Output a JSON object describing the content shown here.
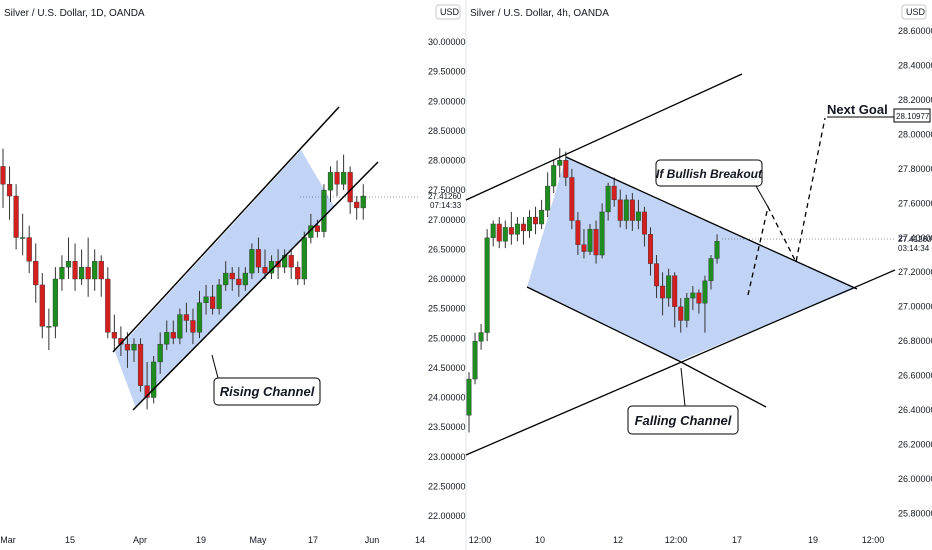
{
  "colors": {
    "bull": "#1e8c1e",
    "bear": "#d41f1f",
    "fill": "#b7cdf3",
    "line": "#000000",
    "price_line": "#333333"
  },
  "currency_badge": "USD",
  "chart_data": [
    {
      "type": "candlestick",
      "title": "Silver / U.S. Dollar, 1D, OANDA",
      "x_tick_labels": [
        "Mar",
        "15",
        "Apr",
        "19",
        "May",
        "17",
        "Jun",
        "14"
      ],
      "y_tick_labels": [
        "22.00000",
        "22.50000",
        "23.00000",
        "23.50000",
        "24.00000",
        "24.50000",
        "25.00000",
        "25.50000",
        "26.00000",
        "26.50000",
        "27.00000",
        "27.50000",
        "28.00000",
        "28.50000",
        "29.00000",
        "29.50000",
        "30.00000"
      ],
      "ylim": [
        21.8,
        30.4
      ],
      "last_price": "27.41260",
      "countdown": "07:14:33",
      "candles": [
        [
          27.9,
          27.6,
          28.2,
          27.2
        ],
        [
          27.6,
          27.4,
          27.9,
          27.0
        ],
        [
          27.4,
          26.7,
          27.6,
          26.5
        ],
        [
          26.7,
          26.7,
          27.1,
          26.4
        ],
        [
          26.7,
          26.3,
          26.9,
          26.1
        ],
        [
          26.3,
          25.9,
          26.6,
          25.6
        ],
        [
          25.9,
          25.2,
          26.1,
          25.0
        ],
        [
          25.2,
          25.2,
          25.5,
          24.8
        ],
        [
          25.2,
          26.0,
          26.2,
          25.0
        ],
        [
          26.0,
          26.2,
          26.4,
          25.8
        ],
        [
          26.2,
          26.3,
          26.7,
          26.0
        ],
        [
          26.3,
          26.0,
          26.6,
          25.8
        ],
        [
          26.0,
          26.2,
          26.5,
          25.9
        ],
        [
          26.2,
          26.0,
          26.7,
          25.7
        ],
        [
          26.0,
          26.3,
          26.5,
          25.8
        ],
        [
          26.3,
          26.0,
          26.4,
          25.7
        ],
        [
          26.0,
          25.1,
          26.2,
          25.0
        ],
        [
          25.1,
          25.0,
          25.4,
          24.8
        ],
        [
          25.0,
          24.9,
          25.2,
          24.7
        ],
        [
          24.9,
          24.8,
          25.1,
          24.5
        ],
        [
          24.8,
          24.9,
          25.0,
          24.6
        ],
        [
          24.9,
          24.2,
          25.0,
          24.1
        ],
        [
          24.2,
          24.0,
          24.6,
          23.8
        ],
        [
          24.0,
          24.6,
          24.7,
          23.9
        ],
        [
          24.6,
          24.9,
          25.1,
          24.4
        ],
        [
          24.9,
          25.1,
          25.3,
          24.8
        ],
        [
          25.1,
          25.0,
          25.3,
          24.9
        ],
        [
          25.0,
          25.4,
          25.5,
          24.9
        ],
        [
          25.4,
          25.3,
          25.6,
          25.1
        ],
        [
          25.3,
          25.1,
          25.5,
          24.9
        ],
        [
          25.1,
          25.6,
          25.8,
          25.0
        ],
        [
          25.6,
          25.7,
          25.9,
          25.4
        ],
        [
          25.7,
          25.5,
          25.9,
          25.4
        ],
        [
          25.5,
          25.9,
          26.0,
          25.4
        ],
        [
          25.9,
          26.1,
          26.3,
          25.8
        ],
        [
          26.1,
          26.0,
          26.2,
          25.8
        ],
        [
          26.0,
          25.9,
          26.2,
          25.7
        ],
        [
          25.9,
          26.1,
          26.2,
          25.8
        ],
        [
          26.1,
          26.5,
          26.6,
          26.0
        ],
        [
          26.5,
          26.2,
          26.7,
          26.1
        ],
        [
          26.2,
          26.1,
          26.5,
          26.0
        ],
        [
          26.1,
          26.3,
          26.4,
          26.0
        ],
        [
          26.3,
          26.2,
          26.5,
          26.0
        ],
        [
          26.2,
          26.4,
          26.5,
          26.1
        ],
        [
          26.4,
          26.2,
          26.5,
          26.0
        ],
        [
          26.2,
          26.0,
          26.3,
          25.9
        ],
        [
          26.0,
          26.7,
          26.8,
          25.9
        ],
        [
          26.7,
          26.9,
          27.1,
          26.6
        ],
        [
          26.9,
          26.8,
          27.0,
          26.7
        ],
        [
          26.8,
          27.5,
          27.6,
          26.7
        ],
        [
          27.5,
          27.8,
          27.9,
          27.3
        ],
        [
          27.8,
          27.6,
          28.0,
          27.4
        ],
        [
          27.6,
          27.8,
          28.1,
          27.5
        ],
        [
          27.8,
          27.3,
          27.9,
          27.1
        ],
        [
          27.3,
          27.2,
          27.4,
          27.0
        ],
        [
          27.2,
          27.4,
          27.6,
          27.0
        ]
      ],
      "annotation": "Rising Channel"
    },
    {
      "type": "candlestick",
      "title": "Silver / U.S. Dollar, 4h, OANDA",
      "x_tick_labels": [
        "12:00",
        "10",
        "12",
        "12:00",
        "17",
        "19",
        "12:00"
      ],
      "y_tick_labels": [
        "25.80000",
        "26.00000",
        "26.20000",
        "26.40000",
        "26.60000",
        "26.80000",
        "27.00000",
        "27.20000",
        "27.40000",
        "27.60000",
        "27.80000",
        "28.00000",
        "28.20000",
        "28.40000",
        "28.60000"
      ],
      "ylim": [
        25.75,
        28.75
      ],
      "last_price": "27.41260",
      "countdown": "03:14:34",
      "target_price": "28.10977",
      "candles": [
        [
          26.37,
          26.58,
          26.62,
          26.27
        ],
        [
          26.58,
          26.8,
          26.85,
          26.55
        ],
        [
          26.8,
          26.85,
          26.9,
          26.75
        ],
        [
          26.85,
          27.4,
          27.45,
          26.8
        ],
        [
          27.4,
          27.48,
          27.5,
          27.35
        ],
        [
          27.48,
          27.38,
          27.52,
          27.34
        ],
        [
          27.38,
          27.46,
          27.5,
          27.34
        ],
        [
          27.46,
          27.42,
          27.55,
          27.36
        ],
        [
          27.42,
          27.48,
          27.52,
          27.38
        ],
        [
          27.48,
          27.44,
          27.52,
          27.36
        ],
        [
          27.44,
          27.52,
          27.56,
          27.4
        ],
        [
          27.52,
          27.48,
          27.58,
          27.42
        ],
        [
          27.48,
          27.56,
          27.62,
          27.45
        ],
        [
          27.56,
          27.7,
          27.78,
          27.52
        ],
        [
          27.7,
          27.82,
          27.85,
          27.66
        ],
        [
          27.82,
          27.85,
          27.92,
          27.75
        ],
        [
          27.85,
          27.75,
          27.9,
          27.7
        ],
        [
          27.75,
          27.5,
          27.8,
          27.45
        ],
        [
          27.5,
          27.36,
          27.55,
          27.3
        ],
        [
          27.36,
          27.32,
          27.45,
          27.28
        ],
        [
          27.32,
          27.45,
          27.48,
          27.3
        ],
        [
          27.45,
          27.3,
          27.5,
          27.25
        ],
        [
          27.3,
          27.55,
          27.6,
          27.28
        ],
        [
          27.55,
          27.7,
          27.72,
          27.5
        ],
        [
          27.7,
          27.62,
          27.75,
          27.58
        ],
        [
          27.62,
          27.5,
          27.68,
          27.46
        ],
        [
          27.5,
          27.62,
          27.65,
          27.45
        ],
        [
          27.62,
          27.5,
          27.66,
          27.44
        ],
        [
          27.5,
          27.55,
          27.62,
          27.45
        ],
        [
          27.55,
          27.42,
          27.58,
          27.35
        ],
        [
          27.42,
          27.25,
          27.46,
          27.18
        ],
        [
          27.25,
          27.12,
          27.3,
          27.05
        ],
        [
          27.12,
          27.05,
          27.2,
          26.95
        ],
        [
          27.05,
          27.18,
          27.22,
          27.0
        ],
        [
          27.18,
          27.0,
          27.2,
          26.88
        ],
        [
          27.0,
          26.92,
          27.05,
          26.85
        ],
        [
          26.92,
          27.05,
          27.08,
          26.88
        ],
        [
          27.05,
          27.08,
          27.12,
          26.98
        ],
        [
          27.08,
          27.02,
          27.1,
          26.96
        ],
        [
          27.02,
          27.15,
          27.18,
          26.85
        ],
        [
          27.15,
          27.28,
          27.3,
          27.1
        ],
        [
          27.28,
          27.38,
          27.42,
          27.25
        ]
      ],
      "annotations": [
        "If Bullish Breakout",
        "Falling Channel",
        "Next Goal"
      ]
    }
  ]
}
